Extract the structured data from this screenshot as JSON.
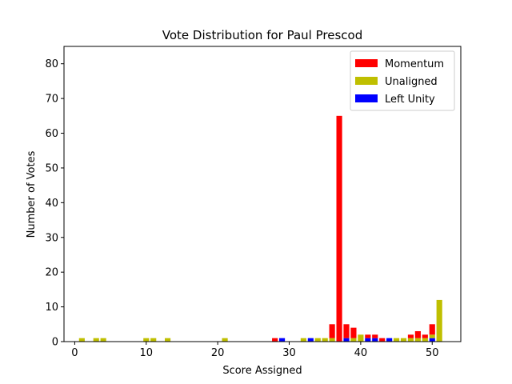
{
  "chart_data": {
    "type": "bar",
    "stacked": true,
    "title": "Vote Distribution for Paul Prescod",
    "xlabel": "Score Assigned",
    "ylabel": "Number of Votes",
    "xlim": [
      -1.5,
      54
    ],
    "ylim": [
      0,
      85
    ],
    "xticks": [
      0,
      10,
      20,
      30,
      40,
      50
    ],
    "yticks": [
      0,
      10,
      20,
      30,
      40,
      50,
      60,
      70,
      80
    ],
    "grid": false,
    "legend_position": "top-right",
    "stack_order": [
      "Left Unity",
      "Unaligned",
      "Momentum"
    ],
    "series": [
      {
        "name": "Momentum",
        "color": "#ff0000",
        "points": [
          [
            28,
            1
          ],
          [
            36,
            4
          ],
          [
            37,
            65
          ],
          [
            38,
            4
          ],
          [
            39,
            3
          ],
          [
            41,
            1
          ],
          [
            42,
            1
          ],
          [
            43,
            1
          ],
          [
            47,
            1
          ],
          [
            48,
            2
          ],
          [
            49,
            1
          ],
          [
            50,
            3
          ]
        ]
      },
      {
        "name": "Unaligned",
        "color": "#bfbf00",
        "points": [
          [
            1,
            1
          ],
          [
            3,
            1
          ],
          [
            4,
            1
          ],
          [
            10,
            1
          ],
          [
            11,
            1
          ],
          [
            13,
            1
          ],
          [
            21,
            1
          ],
          [
            32,
            1
          ],
          [
            34,
            1
          ],
          [
            35,
            1
          ],
          [
            36,
            1
          ],
          [
            39,
            1
          ],
          [
            40,
            2
          ],
          [
            45,
            1
          ],
          [
            46,
            1
          ],
          [
            47,
            1
          ],
          [
            48,
            1
          ],
          [
            49,
            1
          ],
          [
            50,
            1
          ],
          [
            51,
            12
          ]
        ]
      },
      {
        "name": "Left Unity",
        "color": "#0000ff",
        "points": [
          [
            29,
            1
          ],
          [
            33,
            1
          ],
          [
            37,
            0
          ],
          [
            38,
            1
          ],
          [
            41,
            1
          ],
          [
            42,
            1
          ],
          [
            44,
            1
          ],
          [
            50,
            1
          ]
        ]
      }
    ]
  }
}
